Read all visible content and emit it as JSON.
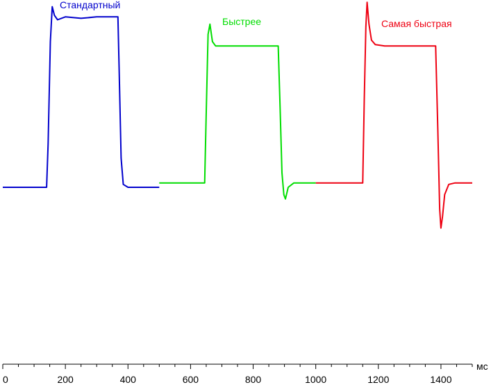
{
  "chart_data": {
    "type": "line",
    "title": "",
    "xlabel": "мс",
    "ylabel": "",
    "xlim": [
      0,
      1500
    ],
    "ylim": [
      -1.4,
      1.35
    ],
    "x_ticks": [
      0,
      200,
      400,
      600,
      800,
      1000,
      1200,
      1400
    ],
    "x_tick_labels": [
      "0",
      "200",
      "400",
      "600",
      "800",
      "1000",
      "1200",
      "1400"
    ],
    "x_minor_step": 50,
    "grid": false,
    "legend": "labels above each series",
    "series": [
      {
        "name": "Стандартный",
        "color": "#0000cc",
        "points": [
          [
            0,
            0.0
          ],
          [
            140,
            0.0
          ],
          [
            145,
            0.3
          ],
          [
            152,
            1.0
          ],
          [
            158,
            1.24
          ],
          [
            165,
            1.18
          ],
          [
            175,
            1.15
          ],
          [
            200,
            1.17
          ],
          [
            250,
            1.16
          ],
          [
            300,
            1.17
          ],
          [
            368,
            1.17
          ],
          [
            372,
            0.8
          ],
          [
            378,
            0.2
          ],
          [
            385,
            0.02
          ],
          [
            400,
            0.0
          ],
          [
            500,
            0.0
          ]
        ]
      },
      {
        "name": "Быстрее",
        "color": "#00dd00",
        "points": [
          [
            500,
            0.03
          ],
          [
            645,
            0.03
          ],
          [
            650,
            0.5
          ],
          [
            656,
            1.05
          ],
          [
            662,
            1.12
          ],
          [
            670,
            1.0
          ],
          [
            680,
            0.97
          ],
          [
            700,
            0.97
          ],
          [
            800,
            0.97
          ],
          [
            880,
            0.97
          ],
          [
            886,
            0.55
          ],
          [
            892,
            0.1
          ],
          [
            898,
            -0.05
          ],
          [
            903,
            -0.08
          ],
          [
            912,
            0.0
          ],
          [
            930,
            0.03
          ],
          [
            1000,
            0.03
          ]
        ]
      },
      {
        "name": "Самая быстрая",
        "color": "#ee0011",
        "points": [
          [
            1000,
            0.03
          ],
          [
            1150,
            0.03
          ],
          [
            1155,
            0.6
          ],
          [
            1160,
            1.1
          ],
          [
            1164,
            1.27
          ],
          [
            1170,
            1.12
          ],
          [
            1178,
            1.01
          ],
          [
            1190,
            0.98
          ],
          [
            1220,
            0.97
          ],
          [
            1300,
            0.97
          ],
          [
            1383,
            0.97
          ],
          [
            1390,
            0.4
          ],
          [
            1396,
            -0.15
          ],
          [
            1400,
            -0.28
          ],
          [
            1405,
            -0.2
          ],
          [
            1412,
            -0.05
          ],
          [
            1425,
            0.02
          ],
          [
            1445,
            0.03
          ],
          [
            1500,
            0.03
          ]
        ]
      }
    ]
  },
  "labels": {
    "s1": "Стандартный",
    "s2": "Быстрее",
    "s3": "Самая быстрая",
    "unit": "мс"
  }
}
